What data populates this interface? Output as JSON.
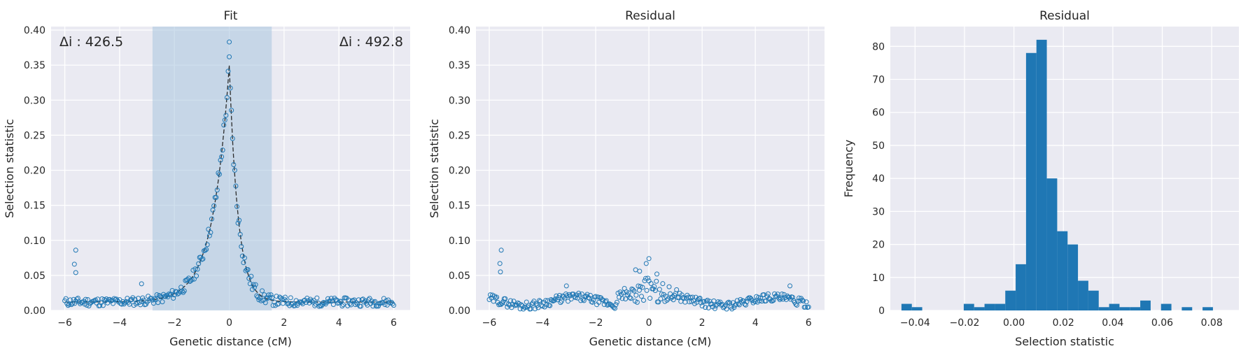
{
  "panels": {
    "fit": {
      "title": "Fit",
      "xlabel": "Genetic distance (cM)",
      "ylabel": "Selection statistic"
    },
    "residual": {
      "title": "Residual",
      "xlabel": "Genetic distance (cM)",
      "ylabel": "Selection statistic"
    },
    "histogram": {
      "title": "Residual",
      "xlabel": "Selection statistic",
      "ylabel": "Frequency"
    }
  },
  "annotations": {
    "left": "Δi : 426.5",
    "right": "Δi : 492.8"
  },
  "colors": {
    "background": "#eaeaf2",
    "grid": "#ffffff",
    "marker": "#1f77b4",
    "fit_line": "#2b2b2b",
    "span": "#a8c5de",
    "bar": "#1f77b4"
  },
  "chart_data": [
    {
      "type": "scatter",
      "title": "Fit",
      "xlabel": "Genetic distance (cM)",
      "ylabel": "Selection statistic",
      "xlim": [
        -6.5,
        6.6
      ],
      "ylim": [
        0,
        0.405
      ],
      "xticks": [
        -6,
        -4,
        -2,
        0,
        2,
        4,
        6
      ],
      "yticks": [
        0.0,
        0.05,
        0.1,
        0.15,
        0.2,
        0.25,
        0.3,
        0.35,
        0.4
      ],
      "grid": true,
      "shaded_span": [
        -2.8,
        1.55
      ],
      "fit_curve": {
        "x_range": [
          -6,
          6
        ],
        "peak": 0.35,
        "center": 0.0,
        "scale_left": 0.6,
        "scale_right": 0.32,
        "baseline": 0.012
      },
      "outliers": [
        [
          -5.6,
          0.086
        ],
        [
          -5.65,
          0.066
        ],
        [
          -5.6,
          0.054
        ],
        [
          -3.2,
          0.038
        ],
        [
          0.0,
          0.383
        ]
      ]
    },
    {
      "type": "scatter",
      "title": "Residual",
      "xlabel": "Genetic distance (cM)",
      "ylabel": "Selection statistic",
      "xlim": [
        -6.5,
        6.6
      ],
      "ylim": [
        0,
        0.405
      ],
      "xticks": [
        -6,
        -4,
        -2,
        0,
        2,
        4,
        6
      ],
      "yticks": [
        0.0,
        0.05,
        0.1,
        0.15,
        0.2,
        0.25,
        0.3,
        0.35,
        0.4
      ],
      "grid": true,
      "outliers": [
        [
          -5.55,
          0.086
        ],
        [
          -5.6,
          0.067
        ],
        [
          -5.58,
          0.055
        ],
        [
          -3.1,
          0.035
        ],
        [
          0.0,
          0.074
        ],
        [
          -0.1,
          0.067
        ],
        [
          0.3,
          0.052
        ],
        [
          -0.5,
          0.058
        ],
        [
          -0.35,
          0.056
        ],
        [
          5.3,
          0.035
        ]
      ]
    },
    {
      "type": "bar",
      "title": "Residual",
      "xlabel": "Selection statistic",
      "ylabel": "Frequency",
      "xlim": [
        -0.05,
        0.091
      ],
      "ylim": [
        0,
        86
      ],
      "xticks": [
        -0.04,
        -0.02,
        0.0,
        0.02,
        0.04,
        0.06,
        0.08
      ],
      "xtick_labels": [
        "−0.04",
        "−0.02",
        "0.00",
        "0.02",
        "0.04",
        "0.06",
        "0.08"
      ],
      "yticks": [
        0,
        10,
        20,
        30,
        40,
        50,
        60,
        70,
        80
      ],
      "grid": true,
      "bin_start": -0.0455,
      "bin_width": 0.0042,
      "values": [
        2,
        1,
        0,
        0,
        0,
        0,
        2,
        1,
        2,
        2,
        6,
        14,
        78,
        82,
        40,
        24,
        20,
        9,
        6,
        1,
        2,
        1,
        1,
        3,
        0,
        2,
        0,
        1,
        0,
        1
      ]
    }
  ]
}
